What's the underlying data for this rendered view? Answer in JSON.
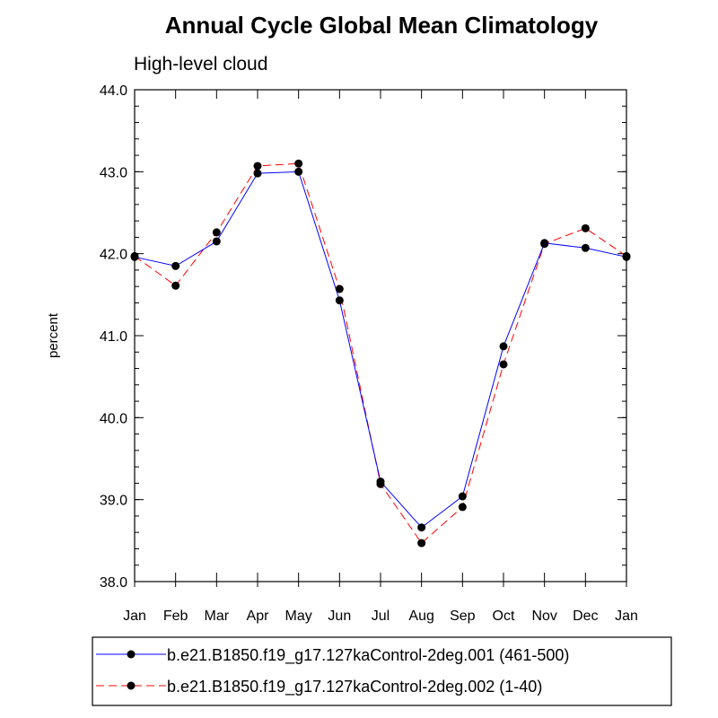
{
  "chart_data": {
    "type": "line",
    "title": "Annual Cycle Global Mean Climatology",
    "subtitle": "High-level cloud",
    "xlabel": "",
    "ylabel": "percent",
    "categories": [
      "Jan",
      "Feb",
      "Mar",
      "Apr",
      "May",
      "Jun",
      "Jul",
      "Aug",
      "Sep",
      "Oct",
      "Nov",
      "Dec",
      "Jan"
    ],
    "ylim": [
      38.0,
      44.0
    ],
    "yticks": [
      38.0,
      39.0,
      40.0,
      41.0,
      42.0,
      43.0,
      44.0
    ],
    "ytick_labels": [
      "38.0",
      "39.0",
      "40.0",
      "41.0",
      "42.0",
      "43.0",
      "44.0"
    ],
    "grid": false,
    "legend_position": "bottom",
    "series": [
      {
        "name": "b.e21.B1850.f19_g17.127kaControl-2deg.001 (461-500)",
        "color": "#0000ff",
        "dash": "solid",
        "marker": "circle",
        "values": [
          41.96,
          41.85,
          42.15,
          42.98,
          43.0,
          41.43,
          39.22,
          38.66,
          39.04,
          40.87,
          42.13,
          42.07,
          41.96
        ]
      },
      {
        "name": "b.e21.B1850.f19_g17.127kaControl-2deg.002 (1-40)",
        "color": "#ff0000",
        "dash": "dashed",
        "marker": "circle",
        "values": [
          41.97,
          41.61,
          42.26,
          43.07,
          43.1,
          41.57,
          39.19,
          38.47,
          38.91,
          40.65,
          42.12,
          42.31,
          41.97
        ]
      }
    ]
  }
}
